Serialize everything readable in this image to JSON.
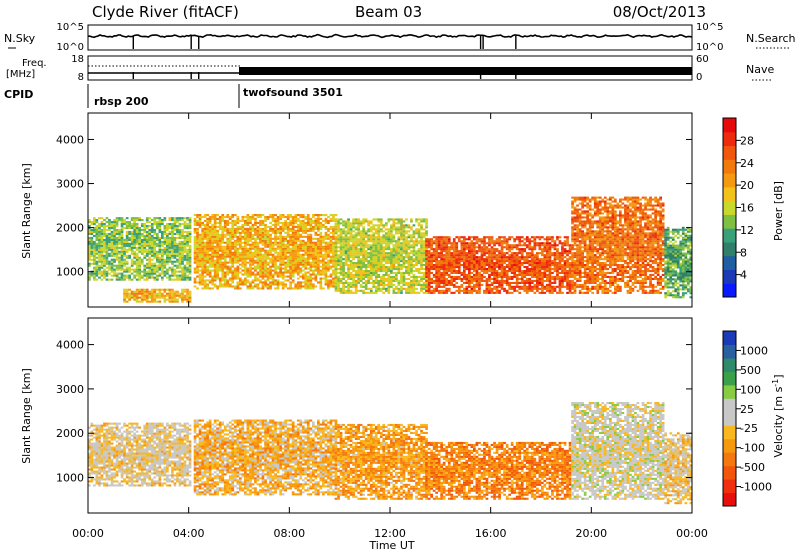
{
  "header": {
    "left": "Clyde River (fitACF)",
    "center": "Beam 03",
    "right": "08/Oct/2013"
  },
  "strip": {
    "nsky_label": "N.Sky",
    "nsky_ticks": [
      "10^5",
      "10^0"
    ],
    "nsearch_label": "N.Search",
    "nsearch_ticks": [
      "10^5",
      "10^0"
    ],
    "freq_label_1": "Freq.",
    "freq_label_2": "[MHz]",
    "freq_ticks": [
      "18",
      "8"
    ],
    "nave_label": "Nave",
    "nave_ticks": [
      "60",
      "0"
    ],
    "cpid_label": "CPID"
  },
  "cpid_segments": [
    {
      "start_hour": 0.0,
      "label": "rbsp 200"
    },
    {
      "start_hour": 6.0,
      "label": "twofsound 3501"
    }
  ],
  "chart_data": [
    {
      "type": "heatmap",
      "title": "",
      "xlabel": "",
      "ylabel": "Slant Range [km]",
      "xlim": [
        0,
        24
      ],
      "ylim": [
        200,
        4600
      ],
      "x_tick_labels": [
        "00:00",
        "04:00",
        "08:00",
        "12:00",
        "16:00",
        "20:00",
        "00:00"
      ],
      "y_tick_labels": [
        "1000",
        "2000",
        "3000",
        "4000"
      ],
      "y_ticks": [
        1000,
        2000,
        3000,
        4000
      ],
      "colorbar": {
        "label": "Power [dB]",
        "range": [
          0,
          32
        ],
        "tick_labels": [
          "28",
          "24",
          "20",
          "16",
          "12",
          "8",
          "4"
        ],
        "colors": [
          "#0a1aff",
          "#1c3ab8",
          "#1f5ea0",
          "#2f7f6a",
          "#3aa07a",
          "#7fc043",
          "#c9d92b",
          "#f2c21a",
          "#f59a10",
          "#f27a0c",
          "#f0560c",
          "#ee2b0f",
          "#e60a0a"
        ]
      },
      "regions": [
        {
          "start": 0.0,
          "end": 4.1,
          "range": [
            800,
            2200
          ],
          "mean": 14
        },
        {
          "start": 1.4,
          "end": 4.1,
          "range": [
            300,
            600
          ],
          "mean": 20
        },
        {
          "start": 4.2,
          "end": 9.8,
          "range": [
            600,
            2300
          ],
          "mean": 20
        },
        {
          "start": 9.8,
          "end": 13.4,
          "range": [
            500,
            2200
          ],
          "mean": 16
        },
        {
          "start": 13.4,
          "end": 19.2,
          "range": [
            500,
            1800
          ],
          "mean": 26
        },
        {
          "start": 19.2,
          "end": 22.9,
          "range": [
            500,
            2700
          ],
          "mean": 24
        },
        {
          "start": 22.9,
          "end": 24.0,
          "range": [
            400,
            2000
          ],
          "mean": 12
        }
      ]
    },
    {
      "type": "heatmap",
      "title": "",
      "xlabel": "Time UT",
      "ylabel": "Slant Range [km]",
      "xlim": [
        0,
        24
      ],
      "ylim": [
        200,
        4600
      ],
      "x_tick_labels": [
        "00:00",
        "04:00",
        "08:00",
        "12:00",
        "16:00",
        "20:00",
        "00:00"
      ],
      "y_tick_labels": [
        "1000",
        "2000",
        "3000",
        "4000"
      ],
      "y_ticks": [
        1000,
        2000,
        3000,
        4000
      ],
      "colorbar": {
        "label": "Velocity [m s^-1]",
        "range": [
          -1200,
          1200
        ],
        "tick_labels": [
          "1000",
          "500",
          "100",
          "25",
          "-25",
          "-100",
          "-500",
          "-1000"
        ],
        "colors": [
          "#e8100c",
          "#f0300c",
          "#f2560c",
          "#f5780f",
          "#f7990f",
          "#f9b820",
          "#c8c8c8",
          "#c8c8c8",
          "#88cc44",
          "#3aa04a",
          "#2e8a6a",
          "#2a5fa0",
          "#1a3ab8"
        ]
      },
      "regions": [
        {
          "start": 0.0,
          "end": 4.1,
          "range": [
            800,
            2200
          ],
          "mean": -60
        },
        {
          "start": 4.2,
          "end": 9.8,
          "range": [
            600,
            2300
          ],
          "mean": -250
        },
        {
          "start": 9.8,
          "end": 13.4,
          "range": [
            500,
            2200
          ],
          "mean": -350
        },
        {
          "start": 13.4,
          "end": 19.2,
          "range": [
            500,
            1800
          ],
          "mean": -500
        },
        {
          "start": 19.2,
          "end": 22.9,
          "range": [
            500,
            2700
          ],
          "mean": 60
        },
        {
          "start": 22.9,
          "end": 24.0,
          "range": [
            400,
            2000
          ],
          "mean": -100
        }
      ]
    }
  ]
}
